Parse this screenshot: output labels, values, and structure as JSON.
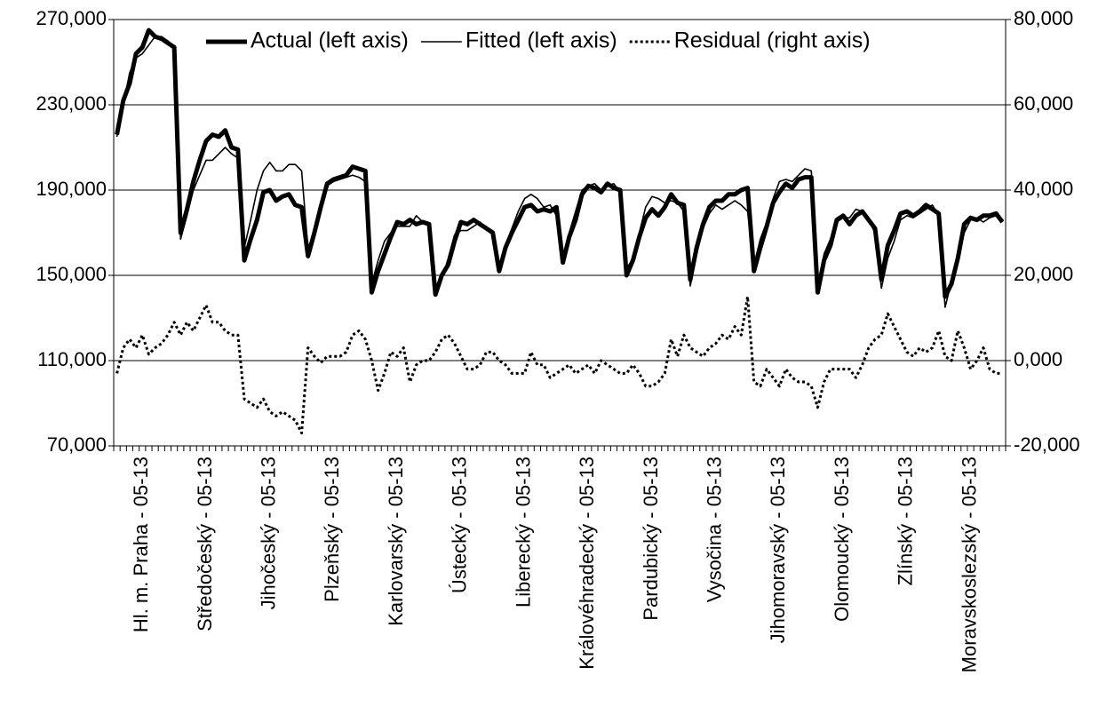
{
  "chart_data": {
    "type": "line",
    "categories": [
      null,
      null,
      null,
      null,
      "Hl. m. Praha - 05-13",
      null,
      null,
      null,
      null,
      null,
      null,
      null,
      null,
      null,
      "Středočeský - 05-13",
      null,
      null,
      null,
      null,
      null,
      null,
      null,
      null,
      null,
      "Jihočeský - 05-13",
      null,
      null,
      null,
      null,
      null,
      null,
      null,
      null,
      null,
      "Plzeňský - 05-13",
      null,
      null,
      null,
      null,
      null,
      null,
      null,
      null,
      null,
      "Karlovarský - 05-13",
      null,
      null,
      null,
      null,
      null,
      null,
      null,
      null,
      null,
      "Ústecký - 05-13",
      null,
      null,
      null,
      null,
      null,
      null,
      null,
      null,
      null,
      "Liberecký - 05-13",
      null,
      null,
      null,
      null,
      null,
      null,
      null,
      null,
      null,
      "Královéhradecký - 05-13",
      null,
      null,
      null,
      null,
      null,
      null,
      null,
      null,
      null,
      "Pardubický - 05-13",
      null,
      null,
      null,
      null,
      null,
      null,
      null,
      null,
      null,
      "Vysočina - 05-13",
      null,
      null,
      null,
      null,
      null,
      null,
      null,
      null,
      null,
      "Jihomoravský - 05-13",
      null,
      null,
      null,
      null,
      null,
      null,
      null,
      null,
      null,
      "Olomoucký - 05-13",
      null,
      null,
      null,
      null,
      null,
      null,
      null,
      null,
      null,
      "Zlínský - 05-13",
      null,
      null,
      null,
      null,
      null,
      null,
      null,
      null,
      null,
      "Moravskoslezský - 05-13",
      null,
      null,
      null,
      null,
      null
    ],
    "series": [
      {
        "name": "Actual (left axis)",
        "color": "#000000",
        "values": [
          216000,
          232000,
          240000,
          254000,
          257000,
          265000,
          262000,
          261000,
          259000,
          257000,
          170000,
          181000,
          194000,
          204000,
          213000,
          216000,
          215000,
          218000,
          210000,
          209000,
          157000,
          167000,
          176000,
          189000,
          190000,
          185000,
          187000,
          188000,
          183000,
          182000,
          159000,
          170000,
          182000,
          193000,
          195000,
          196000,
          197000,
          201000,
          200000,
          199000,
          142000,
          152000,
          160000,
          168000,
          175000,
          174000,
          176000,
          174000,
          175000,
          174000,
          141000,
          150000,
          155000,
          166000,
          175000,
          174000,
          176000,
          174000,
          172000,
          170000,
          152000,
          163000,
          170000,
          176000,
          182000,
          183000,
          180000,
          181000,
          180000,
          182000,
          156000,
          168000,
          176000,
          188000,
          192000,
          191000,
          189000,
          193000,
          191000,
          190000,
          150000,
          157000,
          168000,
          177000,
          181000,
          178000,
          182000,
          188000,
          184000,
          183000,
          148000,
          163000,
          174000,
          182000,
          185000,
          185000,
          188000,
          188000,
          190000,
          191000,
          152000,
          163000,
          173000,
          184000,
          189000,
          193000,
          191000,
          195000,
          196000,
          196000,
          142000,
          157000,
          164000,
          176000,
          178000,
          174000,
          178000,
          180000,
          176000,
          172000,
          148000,
          164000,
          171000,
          179000,
          180000,
          178000,
          180000,
          183000,
          181000,
          179000,
          140000,
          146000,
          158000,
          174000,
          177000,
          176000,
          178000,
          178000,
          179000,
          175000
        ]
      },
      {
        "name": "Fitted (left axis)",
        "color": "#000000",
        "values": [
          215000,
          230000,
          245000,
          252000,
          254000,
          258000,
          262000,
          262000,
          260000,
          257000,
          167000,
          178000,
          190000,
          197000,
          204000,
          204000,
          207000,
          210000,
          207000,
          205000,
          163000,
          176000,
          190000,
          199000,
          203000,
          199000,
          199000,
          202000,
          202000,
          199000,
          162000,
          172000,
          183000,
          192000,
          194000,
          195000,
          196000,
          197000,
          196000,
          194000,
          146000,
          157000,
          166000,
          170000,
          173000,
          173000,
          173000,
          178000,
          175000,
          174000,
          143000,
          148000,
          158000,
          169000,
          171000,
          171000,
          173000,
          175000,
          172000,
          170000,
          153000,
          164000,
          172000,
          180000,
          186000,
          188000,
          186000,
          182000,
          183000,
          178000,
          158000,
          170000,
          180000,
          190000,
          192000,
          193000,
          190000,
          192000,
          193000,
          189000,
          153000,
          158000,
          170000,
          182000,
          187000,
          186000,
          184000,
          185000,
          184000,
          180000,
          145000,
          160000,
          172000,
          179000,
          183000,
          181000,
          183000,
          185000,
          183000,
          180000,
          155000,
          167000,
          175000,
          186000,
          194000,
          195000,
          194000,
          197000,
          200000,
          199000,
          145000,
          160000,
          167000,
          175000,
          177000,
          177000,
          181000,
          180000,
          176000,
          170000,
          144000,
          158000,
          166000,
          176000,
          178000,
          177000,
          179000,
          181000,
          183000,
          178000,
          135000,
          147000,
          158000,
          170000,
          176000,
          177000,
          175000,
          177000,
          178000,
          176000
        ]
      },
      {
        "name": "Residual (right axis)",
        "color": "#000000",
        "axis": "y2",
        "values": [
          -3000,
          3000,
          5000,
          3000,
          6000,
          1500,
          3000,
          4000,
          6000,
          9000,
          6000,
          9000,
          7000,
          10000,
          13000,
          9000,
          9000,
          7000,
          6000,
          6000,
          -9000,
          -10000,
          -11000,
          -9000,
          -12000,
          -13000,
          -12000,
          -13000,
          -14000,
          -17000,
          3000,
          1000,
          -500,
          1000,
          1000,
          1000,
          2000,
          6000,
          7000,
          5000,
          0,
          -7000,
          -3000,
          2000,
          1000,
          3000,
          -5000,
          -1000,
          0,
          0,
          2000,
          5000,
          6000,
          4000,
          1000,
          -2000,
          -2000,
          -1000,
          2000,
          2000,
          0,
          -1000,
          -3000,
          -3000,
          -3000,
          2000,
          -1000,
          -1000,
          -4000,
          -3000,
          -2000,
          -1000,
          -3000,
          -2000,
          -1000,
          -3000,
          0,
          -1000,
          -2000,
          -3000,
          -3000,
          -1000,
          -3000,
          -6000,
          -6000,
          -5000,
          -3000,
          5000,
          1000,
          6000,
          3000,
          2000,
          1000,
          3000,
          4000,
          6000,
          5000,
          8000,
          6000,
          15000,
          -5000,
          -6000,
          -2000,
          -4000,
          -6000,
          -2000,
          -4000,
          -5000,
          -5000,
          -6000,
          -11000,
          -5000,
          -2000,
          -2000,
          -2000,
          -2000,
          -4000,
          -1000,
          3000,
          5000,
          6000,
          11000,
          8000,
          5000,
          2000,
          1000,
          3000,
          2000,
          3000,
          7000,
          1000,
          0,
          7000,
          3000,
          -2000,
          0,
          3000,
          -2000,
          -3000,
          -3000
        ]
      }
    ],
    "ylim": [
      70000,
      270000
    ],
    "yticks": [
      {
        "value": 70000,
        "label": "70,000"
      },
      {
        "value": 110000,
        "label": "110,000"
      },
      {
        "value": 150000,
        "label": "150,000"
      },
      {
        "value": 190000,
        "label": "190,000"
      },
      {
        "value": 230000,
        "label": "230,000"
      },
      {
        "value": 270000,
        "label": "270,000"
      }
    ],
    "y2lim": [
      -20000,
      80000
    ],
    "y2ticks": [
      {
        "value": -20000,
        "label": "-20,000"
      },
      {
        "value": 0,
        "label": "0,000"
      },
      {
        "value": 20000,
        "label": "20,000"
      },
      {
        "value": 40000,
        "label": "40,000"
      },
      {
        "value": 60000,
        "label": "60,000"
      },
      {
        "value": 80000,
        "label": "80,000"
      }
    ],
    "grid": true,
    "legend": "top"
  }
}
